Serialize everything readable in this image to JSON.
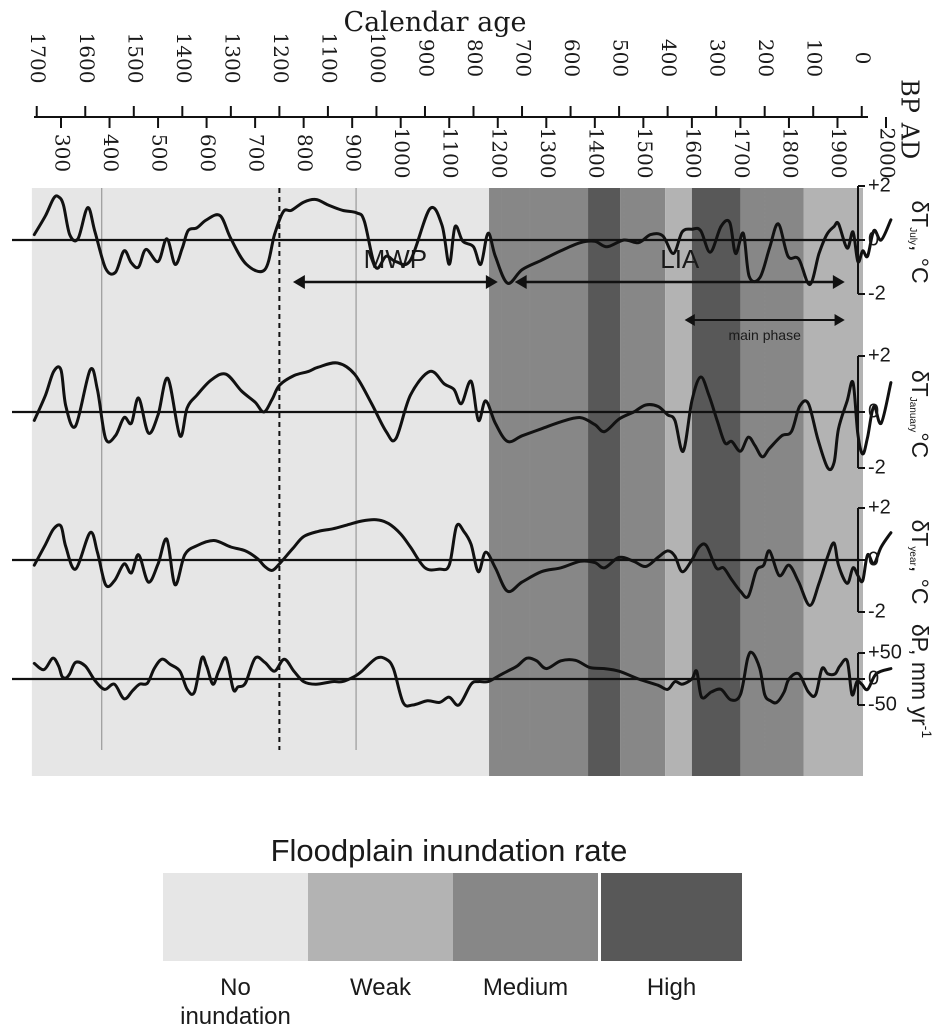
{
  "chart_data": {
    "type": "line",
    "title": "Calendar age",
    "axis_bp": {
      "label": "BP",
      "ticks": [
        "1700",
        "1600",
        "1500",
        "1400",
        "1300",
        "1200",
        "1100",
        "1000",
        "900",
        "800",
        "700",
        "600",
        "500",
        "400",
        "300",
        "200",
        "100",
        "0"
      ],
      "values": [
        1700,
        1600,
        1500,
        1400,
        1300,
        1200,
        1100,
        1000,
        900,
        800,
        700,
        600,
        500,
        400,
        300,
        200,
        100,
        0
      ]
    },
    "axis_ad": {
      "label": "AD",
      "ticks": [
        "300",
        "400",
        "500",
        "600",
        "700",
        "800",
        "900",
        "1000",
        "1100",
        "1200",
        "1300",
        "1400",
        "1500",
        "1600",
        "1700",
        "1800",
        "1900",
        "2000"
      ],
      "values": [
        300,
        400,
        500,
        600,
        700,
        800,
        900,
        1000,
        1100,
        1200,
        1300,
        1400,
        1500,
        1600,
        1700,
        1800,
        1900,
        2000
      ]
    },
    "inundation_periods": [
      {
        "from_ad": 240,
        "to_ad": 1182,
        "level": "none"
      },
      {
        "from_ad": 1182,
        "to_ad": 1386,
        "level": "medium"
      },
      {
        "from_ad": 1386,
        "to_ad": 1452,
        "level": "high"
      },
      {
        "from_ad": 1452,
        "to_ad": 1545,
        "level": "medium"
      },
      {
        "from_ad": 1545,
        "to_ad": 1600,
        "level": "weak"
      },
      {
        "from_ad": 1600,
        "to_ad": 1700,
        "level": "high"
      },
      {
        "from_ad": 1700,
        "to_ad": 1830,
        "level": "medium"
      },
      {
        "from_ad": 1830,
        "to_ad": 2020,
        "level": "weak"
      }
    ],
    "periods": [
      {
        "label": "MWP",
        "from_ad": 778,
        "to_ad": 1200
      },
      {
        "label": "LIA",
        "from_ad": 1235,
        "to_ad": 1915
      },
      {
        "label": "main phase",
        "from_ad": 1585,
        "to_ad": 1915
      }
    ],
    "series": [
      {
        "name": "δT July, °C",
        "label_main": "δT",
        "label_sub": "July",
        "label_unit": ", °C",
        "ticks": [
          "+2",
          "0",
          "-2"
        ],
        "range": [
          -2,
          2
        ],
        "x": [
          245,
          268,
          285,
          295,
          305,
          318,
          335,
          355,
          370,
          392,
          412,
          430,
          445,
          460,
          475,
          500,
          518,
          535,
          550,
          562,
          580,
          600,
          628,
          650,
          682,
          720,
          740,
          758,
          775,
          800,
          825,
          850,
          880,
          910,
          925,
          948,
          970,
          990,
          1020,
          1060,
          1085,
          1100,
          1112,
          1128,
          1150,
          1165,
          1180,
          1195,
          1220,
          1250,
          1290,
          1330,
          1370,
          1400,
          1425,
          1460,
          1490,
          1515,
          1540,
          1562,
          1580,
          1600,
          1618,
          1638,
          1660,
          1678,
          1690,
          1706,
          1718,
          1740,
          1760,
          1778,
          1798,
          1820,
          1843,
          1862,
          1878,
          1893,
          1902,
          1920,
          1932,
          1942,
          1952,
          1962,
          1975,
          1990,
          2010
        ],
        "values": [
          0.2,
          0.9,
          1.55,
          1.6,
          1.3,
          0.2,
          0.05,
          1.2,
          0.3,
          -1.05,
          -1.2,
          -0.4,
          -0.85,
          -1.0,
          -0.35,
          -0.8,
          0.05,
          -0.9,
          -0.3,
          0.35,
          0.45,
          0.75,
          0.9,
          0.05,
          -0.9,
          -1.1,
          0.2,
          1.05,
          1.1,
          1.4,
          1.5,
          1.3,
          1.1,
          1.0,
          0.7,
          -1.0,
          -0.6,
          -0.8,
          -0.75,
          1.15,
          0.55,
          -0.9,
          0.5,
          -0.05,
          -0.25,
          -0.9,
          0.25,
          -0.6,
          -1.6,
          -1.1,
          -0.75,
          -0.4,
          -0.1,
          -0.05,
          -0.25,
          0.0,
          -0.1,
          0.2,
          0.15,
          -0.5,
          0.3,
          0.4,
          0.35,
          -0.45,
          0.5,
          0.65,
          -0.5,
          0.25,
          -1.35,
          -1.4,
          -0.3,
          0.6,
          -0.6,
          -0.7,
          -1.65,
          -0.5,
          0.2,
          0.5,
          0.6,
          -0.3,
          0.3,
          -0.8,
          -0.4,
          -0.6,
          0.35,
          0.0,
          0.75
        ]
      },
      {
        "name": "δT January, °C",
        "label_main": "δT",
        "label_sub": "January",
        "label_unit": "°C",
        "ticks": [
          "+2",
          "0",
          "-2"
        ],
        "range": [
          -2,
          2
        ],
        "x": [
          245,
          268,
          285,
          300,
          310,
          330,
          360,
          375,
          392,
          412,
          430,
          445,
          460,
          480,
          500,
          520,
          545,
          560,
          580,
          610,
          640,
          672,
          700,
          718,
          735,
          750,
          780,
          810,
          830,
          870,
          905,
          940,
          970,
          990,
          1020,
          1060,
          1090,
          1110,
          1125,
          1145,
          1160,
          1175,
          1195,
          1220,
          1250,
          1290,
          1330,
          1370,
          1400,
          1420,
          1450,
          1480,
          1505,
          1530,
          1550,
          1565,
          1582,
          1600,
          1618,
          1635,
          1652,
          1668,
          1682,
          1700,
          1716,
          1730,
          1745,
          1760,
          1785,
          1805,
          1822,
          1840,
          1860,
          1880,
          1893,
          1902,
          1920,
          1932,
          1942,
          1952,
          1962,
          1975,
          1990,
          2010
        ],
        "values": [
          -0.3,
          0.6,
          1.45,
          1.5,
          0.2,
          -0.5,
          1.5,
          0.8,
          -0.95,
          -0.85,
          -0.2,
          -0.4,
          0.5,
          -0.75,
          -0.1,
          1.2,
          -0.85,
          0.15,
          0.6,
          1.15,
          1.35,
          0.75,
          0.35,
          0.0,
          0.45,
          0.95,
          1.3,
          1.45,
          1.6,
          1.75,
          1.35,
          0.3,
          -0.7,
          -0.95,
          0.6,
          1.45,
          1.0,
          0.8,
          0.3,
          1.1,
          -0.3,
          0.4,
          -0.4,
          -1.05,
          -0.85,
          -0.6,
          -0.35,
          -0.2,
          -0.45,
          -0.7,
          -0.25,
          0.0,
          0.25,
          0.2,
          -0.1,
          -0.3,
          -1.4,
          0.4,
          1.25,
          0.6,
          -0.3,
          -1.1,
          -1.05,
          -1.4,
          -0.9,
          -1.2,
          -1.6,
          -1.3,
          -0.85,
          -0.7,
          0.2,
          0.3,
          -1.0,
          -2.0,
          -1.8,
          -0.6,
          0.4,
          1.05,
          -0.8,
          -1.5,
          -0.9,
          0.2,
          -0.4,
          1.05
        ]
      },
      {
        "name": "δT year, °C",
        "label_main": "δT",
        "label_sub": "year",
        "label_unit": ", °C",
        "ticks": [
          "+2",
          "0",
          "-2"
        ],
        "range": [
          -2,
          2
        ],
        "x": [
          245,
          268,
          285,
          300,
          310,
          330,
          360,
          375,
          392,
          410,
          430,
          445,
          460,
          480,
          500,
          518,
          535,
          555,
          580,
          615,
          650,
          680,
          705,
          720,
          735,
          750,
          778,
          800,
          830,
          860,
          890,
          920,
          950,
          975,
          1000,
          1020,
          1050,
          1080,
          1100,
          1115,
          1130,
          1145,
          1160,
          1175,
          1195,
          1220,
          1250,
          1290,
          1330,
          1370,
          1400,
          1420,
          1450,
          1480,
          1505,
          1530,
          1550,
          1565,
          1580,
          1600,
          1615,
          1630,
          1650,
          1665,
          1680,
          1700,
          1716,
          1733,
          1748,
          1760,
          1780,
          1800,
          1820,
          1843,
          1862,
          1880,
          1893,
          1902,
          1920,
          1932,
          1942,
          1952,
          1962,
          1975,
          1990,
          2010
        ],
        "values": [
          -0.2,
          0.6,
          1.2,
          1.3,
          0.5,
          -0.35,
          1.05,
          0.3,
          -0.95,
          -0.8,
          -0.15,
          -0.5,
          0.2,
          -0.85,
          -0.15,
          0.8,
          -0.95,
          0.2,
          0.55,
          0.75,
          0.5,
          0.35,
          0.05,
          -0.25,
          -0.4,
          -0.15,
          0.45,
          0.9,
          1.1,
          1.2,
          1.35,
          1.5,
          1.55,
          1.4,
          1.0,
          0.5,
          -0.3,
          -0.35,
          -0.2,
          1.3,
          1.1,
          0.6,
          -0.45,
          0.3,
          -0.3,
          -1.2,
          -0.85,
          -0.45,
          -0.3,
          -0.05,
          -0.1,
          -0.3,
          0.1,
          -0.05,
          -0.25,
          0.1,
          0.35,
          0.15,
          -0.45,
          0.0,
          0.5,
          0.55,
          -0.3,
          -0.3,
          -0.7,
          -1.2,
          -1.4,
          -0.4,
          -0.2,
          0.35,
          -0.6,
          -0.2,
          -0.85,
          -1.75,
          -0.9,
          0.15,
          0.65,
          -0.2,
          -0.9,
          -0.3,
          -0.6,
          -0.8,
          0.2,
          -0.15,
          0.5,
          1.05
        ]
      },
      {
        "name": "δP, mm yr-1",
        "label_main": "δP, mm yr",
        "label_sub": "",
        "label_unit": "-1",
        "ticks": [
          "+50",
          "0",
          "-50"
        ],
        "range": [
          -50,
          50
        ],
        "x": [
          245,
          265,
          283,
          295,
          302,
          310,
          318,
          330,
          350,
          370,
          390,
          410,
          430,
          448,
          462,
          478,
          492,
          508,
          525,
          545,
          560,
          575,
          590,
          600,
          613,
          625,
          640,
          655,
          665,
          680,
          700,
          720,
          740,
          760,
          780,
          800,
          825,
          860,
          880,
          905,
          920,
          950,
          970,
          985,
          1005,
          1025,
          1055,
          1080,
          1100,
          1120,
          1145,
          1160,
          1180,
          1200,
          1220,
          1240,
          1260,
          1280,
          1300,
          1330,
          1360,
          1390,
          1420,
          1450,
          1490,
          1530,
          1550,
          1565,
          1580,
          1600,
          1610,
          1620,
          1640,
          1660,
          1680,
          1700,
          1715,
          1725,
          1740,
          1750,
          1762,
          1775,
          1790,
          1800,
          1820,
          1840,
          1855,
          1868,
          1880,
          1895,
          1905,
          1920,
          1930,
          1940,
          1950,
          1962,
          1980,
          2010
        ],
        "values": [
          30,
          18,
          40,
          25,
          5,
          2,
          10,
          32,
          25,
          -3,
          -20,
          -10,
          -38,
          -22,
          -10,
          -8,
          20,
          38,
          28,
          15,
          -20,
          -25,
          40,
          25,
          -10,
          15,
          40,
          -20,
          -15,
          -8,
          40,
          32,
          15,
          38,
          15,
          -5,
          -10,
          -5,
          -5,
          5,
          15,
          40,
          38,
          20,
          -45,
          -50,
          -42,
          -45,
          -35,
          -50,
          -10,
          -5,
          -5,
          5,
          15,
          25,
          40,
          35,
          20,
          35,
          36,
          22,
          20,
          15,
          0,
          -12,
          -20,
          -5,
          -10,
          0,
          15,
          -35,
          -25,
          -20,
          -40,
          -30,
          40,
          50,
          20,
          -30,
          -42,
          -45,
          -25,
          0,
          10,
          -25,
          -30,
          20,
          10,
          10,
          25,
          35,
          -30,
          -5,
          -10,
          -20,
          10,
          20
        ]
      }
    ],
    "legend": {
      "title": "Floodplain inundation rate",
      "items": [
        {
          "level": "none",
          "label_lines": [
            "No",
            "inundation"
          ],
          "color": "#e6e6e6"
        },
        {
          "level": "weak",
          "label_lines": [
            "Weak"
          ],
          "color": "#b3b3b3"
        },
        {
          "level": "medium",
          "label_lines": [
            "Medium"
          ],
          "color": "#878787"
        },
        {
          "level": "high",
          "label_lines": [
            "High"
          ],
          "color": "#585858"
        }
      ]
    },
    "band_colors": {
      "none": "#e6e6e6",
      "weak": "#b3b3b3",
      "medium": "#878787",
      "high": "#585858"
    }
  }
}
